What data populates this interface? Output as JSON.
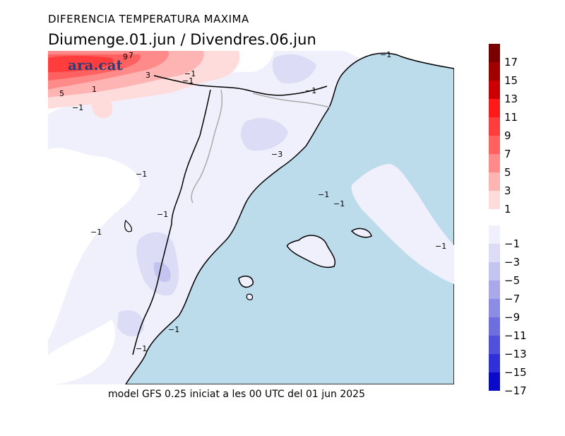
{
  "title": "DIFERENCIA TEMPERATURA MAXIMA",
  "subtitle": "Diumenge.01.jun  /  Divendres.06.jun",
  "watermark": "ara.cat",
  "footer": "model GFS 0.25 iniciat a les 00 UTC del 01 jun 2025",
  "legend": {
    "positive": [
      {
        "label": "17",
        "color": "#7a0000"
      },
      {
        "label": "15",
        "color": "#a00000"
      },
      {
        "label": "13",
        "color": "#cc0000"
      },
      {
        "label": "11",
        "color": "#ff1a1a"
      },
      {
        "label": "9",
        "color": "#ff3d3d"
      },
      {
        "label": "7",
        "color": "#ff6060"
      },
      {
        "label": "5",
        "color": "#ff8a8a"
      },
      {
        "label": "3",
        "color": "#ffb4b4"
      },
      {
        "label": "1",
        "color": "#ffdcdc"
      }
    ],
    "negative": [
      {
        "label": "−1",
        "color": "#f0f0fc"
      },
      {
        "label": "−3",
        "color": "#dcdcf6"
      },
      {
        "label": "−5",
        "color": "#c4c4f0"
      },
      {
        "label": "−7",
        "color": "#a8a8ea"
      },
      {
        "label": "−9",
        "color": "#8c8ce4"
      },
      {
        "label": "−11",
        "color": "#6e6ede"
      },
      {
        "label": "−13",
        "color": "#5050dc"
      },
      {
        "label": "−15",
        "color": "#3030d8"
      },
      {
        "label": "−17",
        "color": "#0a0ac8"
      }
    ]
  },
  "contour_labels": [
    "9",
    "7",
    "3",
    "−1",
    "−1",
    "5",
    "1",
    "−1",
    "−1",
    "−1",
    "−3",
    "−1",
    "−1",
    "−1",
    "−1",
    "−1",
    "−1",
    "−1",
    "−1"
  ],
  "colors": {
    "sea": "#bcdcec",
    "land_base": "#f0f0fc",
    "zero_band": "#ffffff"
  }
}
